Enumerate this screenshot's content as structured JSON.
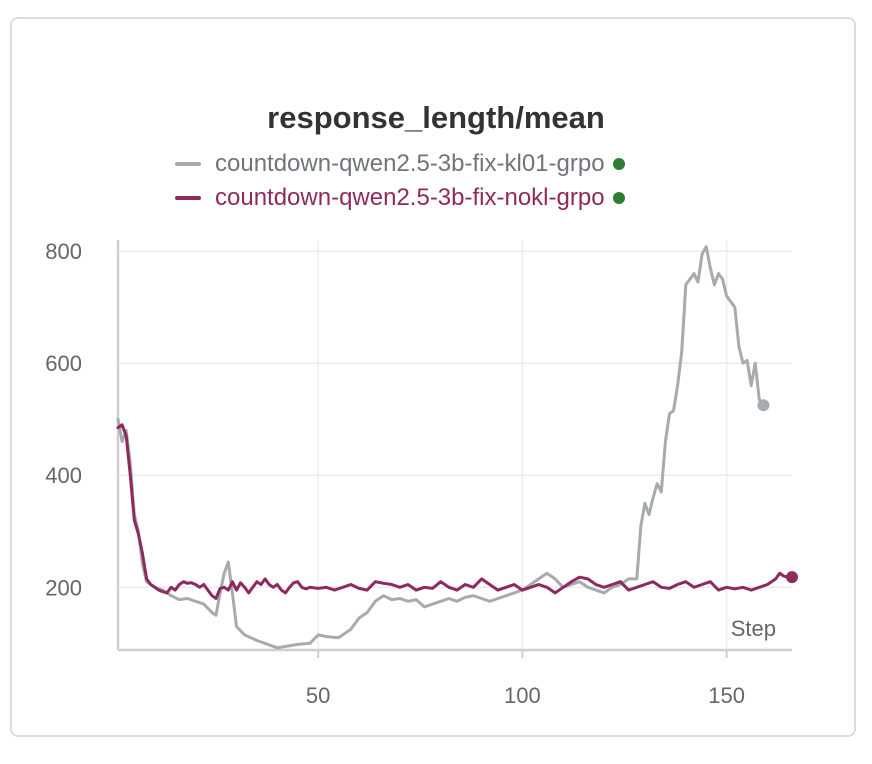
{
  "colors": {
    "kl01": "#a6abaf",
    "nokl": "#8f2a5e",
    "active": "#2f7d32"
  },
  "chart_data": {
    "type": "line",
    "title": "response_length/mean",
    "xlabel": "Step",
    "ylabel": "",
    "xlim": [
      1,
      166
    ],
    "ylim": [
      88,
      820
    ],
    "yticks": [
      200,
      400,
      600,
      800
    ],
    "xticks": [
      50,
      100,
      150
    ],
    "grid": true,
    "legend_position": "top",
    "series": [
      {
        "name": "countdown-qwen2.5-3b-fix-kl01-grpo",
        "color": "#a6abaf",
        "points": [
          [
            1,
            500
          ],
          [
            2,
            460
          ],
          [
            3,
            480
          ],
          [
            4,
            420
          ],
          [
            5,
            330
          ],
          [
            6,
            300
          ],
          [
            7,
            240
          ],
          [
            8,
            210
          ],
          [
            10,
            200
          ],
          [
            12,
            195
          ],
          [
            14,
            185
          ],
          [
            16,
            178
          ],
          [
            18,
            180
          ],
          [
            20,
            175
          ],
          [
            22,
            170
          ],
          [
            24,
            155
          ],
          [
            25,
            150
          ],
          [
            26,
            190
          ],
          [
            27,
            225
          ],
          [
            28,
            245
          ],
          [
            29,
            190
          ],
          [
            30,
            130
          ],
          [
            32,
            115
          ],
          [
            35,
            105
          ],
          [
            40,
            92
          ],
          [
            45,
            98
          ],
          [
            48,
            100
          ],
          [
            50,
            115
          ],
          [
            52,
            112
          ],
          [
            55,
            110
          ],
          [
            58,
            125
          ],
          [
            60,
            145
          ],
          [
            62,
            155
          ],
          [
            64,
            175
          ],
          [
            66,
            185
          ],
          [
            68,
            178
          ],
          [
            70,
            180
          ],
          [
            72,
            175
          ],
          [
            74,
            178
          ],
          [
            76,
            165
          ],
          [
            78,
            170
          ],
          [
            80,
            175
          ],
          [
            82,
            180
          ],
          [
            84,
            175
          ],
          [
            86,
            182
          ],
          [
            88,
            185
          ],
          [
            90,
            180
          ],
          [
            92,
            175
          ],
          [
            94,
            180
          ],
          [
            96,
            185
          ],
          [
            98,
            190
          ],
          [
            100,
            195
          ],
          [
            102,
            205
          ],
          [
            104,
            215
          ],
          [
            106,
            225
          ],
          [
            108,
            215
          ],
          [
            110,
            200
          ],
          [
            112,
            205
          ],
          [
            114,
            210
          ],
          [
            116,
            200
          ],
          [
            118,
            195
          ],
          [
            120,
            190
          ],
          [
            122,
            200
          ],
          [
            124,
            205
          ],
          [
            126,
            215
          ],
          [
            128,
            215
          ],
          [
            129,
            310
          ],
          [
            130,
            350
          ],
          [
            131,
            330
          ],
          [
            132,
            360
          ],
          [
            133,
            385
          ],
          [
            134,
            370
          ],
          [
            135,
            460
          ],
          [
            136,
            510
          ],
          [
            137,
            515
          ],
          [
            138,
            560
          ],
          [
            139,
            620
          ],
          [
            140,
            740
          ],
          [
            141,
            750
          ],
          [
            142,
            760
          ],
          [
            143,
            745
          ],
          [
            144,
            795
          ],
          [
            145,
            808
          ],
          [
            146,
            770
          ],
          [
            147,
            740
          ],
          [
            148,
            760
          ],
          [
            149,
            750
          ],
          [
            150,
            720
          ],
          [
            151,
            710
          ],
          [
            152,
            700
          ],
          [
            153,
            630
          ],
          [
            154,
            600
          ],
          [
            155,
            605
          ],
          [
            156,
            560
          ],
          [
            157,
            600
          ],
          [
            158,
            535
          ],
          [
            159,
            525
          ]
        ]
      },
      {
        "name": "countdown-qwen2.5-3b-fix-nokl-grpo",
        "color": "#8f2a5e",
        "points": [
          [
            1,
            485
          ],
          [
            2,
            490
          ],
          [
            3,
            470
          ],
          [
            4,
            400
          ],
          [
            5,
            320
          ],
          [
            6,
            295
          ],
          [
            7,
            260
          ],
          [
            8,
            215
          ],
          [
            9,
            205
          ],
          [
            10,
            200
          ],
          [
            11,
            195
          ],
          [
            12,
            192
          ],
          [
            13,
            190
          ],
          [
            14,
            200
          ],
          [
            15,
            195
          ],
          [
            16,
            205
          ],
          [
            17,
            210
          ],
          [
            18,
            207
          ],
          [
            19,
            208
          ],
          [
            20,
            205
          ],
          [
            21,
            200
          ],
          [
            22,
            205
          ],
          [
            23,
            195
          ],
          [
            24,
            185
          ],
          [
            25,
            180
          ],
          [
            26,
            198
          ],
          [
            27,
            200
          ],
          [
            28,
            195
          ],
          [
            29,
            210
          ],
          [
            30,
            195
          ],
          [
            31,
            208
          ],
          [
            32,
            200
          ],
          [
            33,
            190
          ],
          [
            34,
            200
          ],
          [
            35,
            210
          ],
          [
            36,
            205
          ],
          [
            37,
            215
          ],
          [
            38,
            205
          ],
          [
            39,
            200
          ],
          [
            40,
            205
          ],
          [
            41,
            195
          ],
          [
            42,
            190
          ],
          [
            43,
            200
          ],
          [
            44,
            208
          ],
          [
            45,
            210
          ],
          [
            46,
            200
          ],
          [
            47,
            197
          ],
          [
            48,
            200
          ],
          [
            50,
            198
          ],
          [
            52,
            200
          ],
          [
            54,
            195
          ],
          [
            56,
            200
          ],
          [
            58,
            205
          ],
          [
            60,
            198
          ],
          [
            62,
            195
          ],
          [
            64,
            210
          ],
          [
            66,
            207
          ],
          [
            68,
            205
          ],
          [
            70,
            200
          ],
          [
            72,
            205
          ],
          [
            74,
            195
          ],
          [
            76,
            200
          ],
          [
            78,
            198
          ],
          [
            80,
            210
          ],
          [
            82,
            200
          ],
          [
            84,
            195
          ],
          [
            86,
            205
          ],
          [
            88,
            200
          ],
          [
            90,
            215
          ],
          [
            92,
            205
          ],
          [
            94,
            195
          ],
          [
            96,
            200
          ],
          [
            98,
            205
          ],
          [
            100,
            195
          ],
          [
            102,
            200
          ],
          [
            104,
            205
          ],
          [
            106,
            200
          ],
          [
            108,
            190
          ],
          [
            110,
            200
          ],
          [
            112,
            210
          ],
          [
            114,
            218
          ],
          [
            116,
            215
          ],
          [
            118,
            205
          ],
          [
            120,
            200
          ],
          [
            122,
            205
          ],
          [
            124,
            210
          ],
          [
            126,
            195
          ],
          [
            128,
            200
          ],
          [
            130,
            205
          ],
          [
            132,
            210
          ],
          [
            134,
            200
          ],
          [
            136,
            198
          ],
          [
            138,
            205
          ],
          [
            140,
            210
          ],
          [
            142,
            200
          ],
          [
            144,
            205
          ],
          [
            146,
            210
          ],
          [
            148,
            195
          ],
          [
            150,
            200
          ],
          [
            152,
            197
          ],
          [
            154,
            200
          ],
          [
            156,
            195
          ],
          [
            158,
            200
          ],
          [
            160,
            205
          ],
          [
            162,
            215
          ],
          [
            163,
            225
          ],
          [
            164,
            220
          ],
          [
            165,
            218
          ],
          [
            166,
            218
          ]
        ]
      }
    ],
    "end_markers": [
      [
        159,
        525
      ],
      [
        166,
        218
      ]
    ]
  }
}
